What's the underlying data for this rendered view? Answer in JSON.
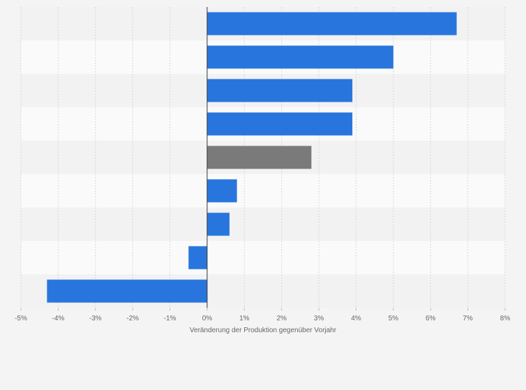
{
  "chart_data": {
    "type": "bar",
    "orientation": "horizontal",
    "categories": [
      "",
      "",
      "",
      "",
      "",
      "",
      "",
      "",
      ""
    ],
    "values": [
      6.7,
      5.0,
      3.9,
      3.9,
      2.8,
      0.8,
      0.6,
      -0.5,
      -4.3
    ],
    "highlight_index": 4,
    "xlabel": "Veränderung der Produktion gegenüber Vorjahr",
    "xlim": [
      -5,
      8
    ],
    "ticks": [
      -5,
      -4,
      -3,
      -2,
      -1,
      0,
      1,
      2,
      3,
      4,
      5,
      6,
      7,
      8
    ],
    "tick_labels": [
      "-5%",
      "-4%",
      "-3%",
      "-2%",
      "-1%",
      "0%",
      "1%",
      "2%",
      "3%",
      "4%",
      "5%",
      "6%",
      "7%",
      "8%"
    ],
    "grid": true,
    "colors": {
      "bar": "#2876dd",
      "highlight": "#7a7a7a",
      "background": "#f4f4f4"
    }
  }
}
